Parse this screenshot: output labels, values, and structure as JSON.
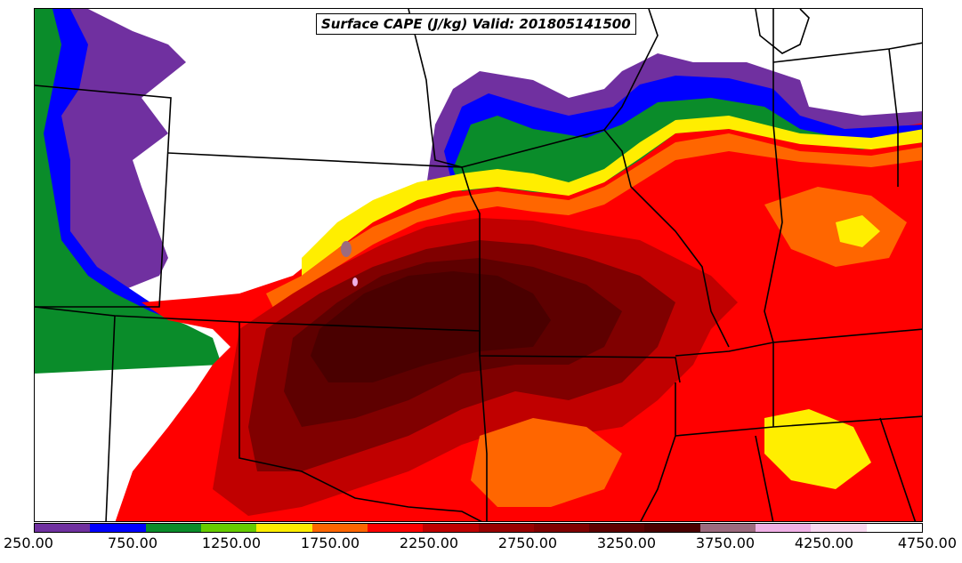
{
  "title": "Surface CAPE (J/kg) Valid: 201805141500",
  "colorbar": {
    "colors": [
      "#7030a0",
      "#0000ff",
      "#0a8c2a",
      "#66cc00",
      "#ffee00",
      "#ff6600",
      "#ff0000",
      "#c00000",
      "#990000",
      "#800000",
      "#5e0000",
      "#4a0000",
      "#9c6b7e",
      "#f0b0e6",
      "#f8d8f0",
      "#ffffff"
    ],
    "tick_labels": [
      "250.00",
      "750.00",
      "1250.00",
      "1750.00",
      "2250.00",
      "2750.00",
      "3250.00",
      "3750.00",
      "4250.00",
      "4750.00"
    ]
  }
}
